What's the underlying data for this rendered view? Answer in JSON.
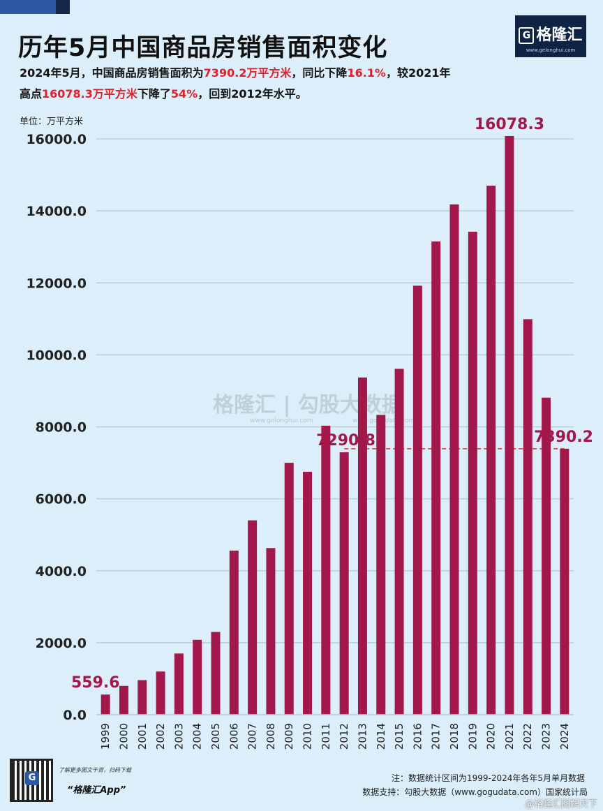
{
  "header": {
    "title": "历年5月中国商品房销售面积变化",
    "logo_text": "格隆汇",
    "logo_url": "www.gelonghui.com",
    "subtitle_parts": [
      {
        "text": "2024年5月，中国商品房销售面积为",
        "hl": false
      },
      {
        "text": "7390.2万平方米",
        "hl": true
      },
      {
        "text": "，同比下降",
        "hl": false
      },
      {
        "text": "16.1%",
        "hl": true
      },
      {
        "text": "，较2021年",
        "hl": false
      },
      {
        "text": "高点",
        "hl": false
      },
      {
        "text": "16078.3万平方米",
        "hl": true
      },
      {
        "text": "下降了",
        "hl": false
      },
      {
        "text": "54%",
        "hl": true
      },
      {
        "text": "，回到2012年水平。",
        "hl": false
      }
    ]
  },
  "unit_label": "单位：万平方米",
  "watermark": {
    "text": "格隆汇 | 勾股大数据",
    "url_left": "www.gelonghui.com",
    "url_right": "www.gogudata.com"
  },
  "footer": {
    "promo": "了解更多图文干货，扫码下载",
    "app_name": "“格隆汇App”",
    "note": "注：数据统计区间为1999-2024年各年5月单月数据",
    "source": "数据支持：勾股大数据（www.gogudata.com）国家统计局",
    "weibo": "@格隆汇图解天下"
  },
  "colors": {
    "bar": "#a3184a",
    "label": "#a3184a",
    "accent": "#e0202a",
    "grid": "#b8cfdd",
    "background": "#dbeef9"
  },
  "chart_data": {
    "type": "bar",
    "categories": [
      "1999",
      "2000",
      "2001",
      "2002",
      "2003",
      "2004",
      "2005",
      "2006",
      "2007",
      "2008",
      "2009",
      "2010",
      "2011",
      "2012",
      "2013",
      "2014",
      "2015",
      "2016",
      "2017",
      "2018",
      "2019",
      "2020",
      "2021",
      "2022",
      "2023",
      "2024"
    ],
    "values": [
      559.6,
      800,
      960,
      1200,
      1700,
      2080,
      2300,
      4560,
      5400,
      4630,
      7000,
      6750,
      8030,
      7290.8,
      9370,
      8330,
      9610,
      11920,
      13150,
      14180,
      13420,
      14700,
      16078.3,
      10990,
      8810,
      7390.2
    ],
    "ylim": [
      0,
      16000
    ],
    "yticks": [
      "0.0",
      "2000.0",
      "4000.0",
      "6000.0",
      "8000.0",
      "10000.0",
      "12000.0",
      "14000.0",
      "16000.0"
    ],
    "ylabel": "单位：万平方米",
    "grid": true,
    "annotations": [
      {
        "category": "1999",
        "label": "559.6"
      },
      {
        "category": "2012",
        "label": "7290.8"
      },
      {
        "category": "2021",
        "label": "16078.3"
      },
      {
        "category": "2024",
        "label": "7390.2"
      }
    ],
    "reference_line": {
      "value": 7390.2,
      "style": "dashed",
      "from": "2012",
      "to": "2024"
    }
  }
}
